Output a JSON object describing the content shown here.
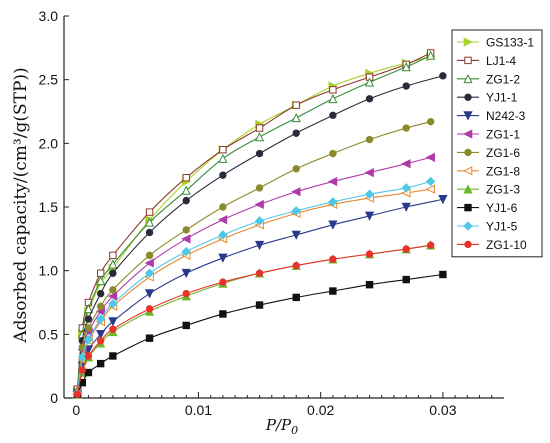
{
  "chart_data": {
    "type": "line",
    "title": "",
    "xlabel": "P/P0",
    "xlabel_main": "P/P",
    "xlabel_sub": "0",
    "ylabel": "Adsorbed capacity/(cm³/g(STP))",
    "xlim": [
      -0.001,
      0.035
    ],
    "ylim": [
      0,
      3.0
    ],
    "xticks": [
      0,
      0.01,
      0.02,
      0.03
    ],
    "xtick_labels": [
      "0",
      "0.01",
      "0.02",
      "0.03"
    ],
    "yticks": [
      0,
      0.5,
      1.0,
      1.5,
      2.0,
      2.5,
      3.0
    ],
    "ytick_labels": [
      "0",
      "0.5",
      "1.0",
      "1.5",
      "2.0",
      "2.5",
      "3.0"
    ],
    "grid": false,
    "legend_position": "top-right",
    "series": [
      {
        "name": "GS133-1",
        "color": "#a8d22a",
        "marker": "triangle-right",
        "points": [
          [
            0.0001,
            0.06
          ],
          [
            0.0005,
            0.5
          ],
          [
            0.001,
            0.68
          ],
          [
            0.002,
            0.9
          ],
          [
            0.003,
            1.02
          ],
          [
            0.006,
            1.4
          ],
          [
            0.009,
            1.7
          ],
          [
            0.012,
            1.95
          ],
          [
            0.015,
            2.15
          ],
          [
            0.018,
            2.3
          ],
          [
            0.021,
            2.45
          ],
          [
            0.024,
            2.55
          ],
          [
            0.027,
            2.63
          ],
          [
            0.029,
            2.68
          ]
        ]
      },
      {
        "name": "LJ1-4",
        "color": "#8b3a2a",
        "marker": "square-open",
        "points": [
          [
            0.0001,
            0.07
          ],
          [
            0.0005,
            0.55
          ],
          [
            0.001,
            0.75
          ],
          [
            0.002,
            0.98
          ],
          [
            0.003,
            1.12
          ],
          [
            0.006,
            1.46
          ],
          [
            0.009,
            1.73
          ],
          [
            0.012,
            1.95
          ],
          [
            0.015,
            2.12
          ],
          [
            0.018,
            2.3
          ],
          [
            0.021,
            2.42
          ],
          [
            0.024,
            2.52
          ],
          [
            0.027,
            2.62
          ],
          [
            0.029,
            2.71
          ]
        ]
      },
      {
        "name": "ZG1-2",
        "color": "#3a8a3a",
        "marker": "triangle-up-open",
        "points": [
          [
            0.0001,
            0.06
          ],
          [
            0.0005,
            0.5
          ],
          [
            0.001,
            0.7
          ],
          [
            0.002,
            0.92
          ],
          [
            0.003,
            1.05
          ],
          [
            0.006,
            1.38
          ],
          [
            0.009,
            1.63
          ],
          [
            0.012,
            1.88
          ],
          [
            0.015,
            2.05
          ],
          [
            0.018,
            2.2
          ],
          [
            0.021,
            2.35
          ],
          [
            0.024,
            2.48
          ],
          [
            0.027,
            2.6
          ],
          [
            0.029,
            2.69
          ]
        ]
      },
      {
        "name": "YJ1-1",
        "color": "#2a2a3a",
        "marker": "circle",
        "points": [
          [
            0.0001,
            0.05
          ],
          [
            0.0005,
            0.45
          ],
          [
            0.001,
            0.62
          ],
          [
            0.002,
            0.82
          ],
          [
            0.003,
            0.98
          ],
          [
            0.006,
            1.3
          ],
          [
            0.009,
            1.55
          ],
          [
            0.012,
            1.75
          ],
          [
            0.015,
            1.92
          ],
          [
            0.018,
            2.08
          ],
          [
            0.021,
            2.22
          ],
          [
            0.024,
            2.35
          ],
          [
            0.027,
            2.45
          ],
          [
            0.03,
            2.53
          ]
        ]
      },
      {
        "name": "N242-3",
        "color": "#2a3a8a",
        "marker": "triangle-down",
        "points": [
          [
            0.0001,
            0.04
          ],
          [
            0.0005,
            0.25
          ],
          [
            0.001,
            0.38
          ],
          [
            0.002,
            0.5
          ],
          [
            0.003,
            0.6
          ],
          [
            0.006,
            0.82
          ],
          [
            0.009,
            0.98
          ],
          [
            0.012,
            1.1
          ],
          [
            0.015,
            1.2
          ],
          [
            0.018,
            1.28
          ],
          [
            0.021,
            1.36
          ],
          [
            0.024,
            1.43
          ],
          [
            0.027,
            1.5
          ],
          [
            0.03,
            1.56
          ]
        ]
      },
      {
        "name": "ZG1-1",
        "color": "#b03aa8",
        "marker": "triangle-left",
        "points": [
          [
            0.0001,
            0.05
          ],
          [
            0.0005,
            0.38
          ],
          [
            0.001,
            0.52
          ],
          [
            0.002,
            0.68
          ],
          [
            0.003,
            0.8
          ],
          [
            0.006,
            1.06
          ],
          [
            0.009,
            1.25
          ],
          [
            0.012,
            1.4
          ],
          [
            0.015,
            1.52
          ],
          [
            0.018,
            1.62
          ],
          [
            0.021,
            1.7
          ],
          [
            0.024,
            1.77
          ],
          [
            0.027,
            1.84
          ],
          [
            0.029,
            1.89
          ]
        ]
      },
      {
        "name": "ZG1-6",
        "color": "#8a8a2a",
        "marker": "circle",
        "points": [
          [
            0.0001,
            0.05
          ],
          [
            0.0005,
            0.4
          ],
          [
            0.001,
            0.55
          ],
          [
            0.002,
            0.72
          ],
          [
            0.003,
            0.85
          ],
          [
            0.006,
            1.12
          ],
          [
            0.009,
            1.32
          ],
          [
            0.012,
            1.5
          ],
          [
            0.015,
            1.65
          ],
          [
            0.018,
            1.8
          ],
          [
            0.021,
            1.92
          ],
          [
            0.024,
            2.03
          ],
          [
            0.027,
            2.12
          ],
          [
            0.029,
            2.17
          ]
        ]
      },
      {
        "name": "ZG1-8",
        "color": "#e8862a",
        "marker": "triangle-left-open",
        "points": [
          [
            0.0001,
            0.04
          ],
          [
            0.0005,
            0.3
          ],
          [
            0.001,
            0.45
          ],
          [
            0.002,
            0.6
          ],
          [
            0.003,
            0.72
          ],
          [
            0.006,
            0.95
          ],
          [
            0.009,
            1.12
          ],
          [
            0.012,
            1.25
          ],
          [
            0.015,
            1.36
          ],
          [
            0.018,
            1.45
          ],
          [
            0.021,
            1.52
          ],
          [
            0.024,
            1.57
          ],
          [
            0.027,
            1.61
          ],
          [
            0.029,
            1.64
          ]
        ]
      },
      {
        "name": "ZG1-3",
        "color": "#6ab82a",
        "marker": "triangle-up",
        "points": [
          [
            0.0001,
            0.03
          ],
          [
            0.0005,
            0.2
          ],
          [
            0.001,
            0.32
          ],
          [
            0.002,
            0.43
          ],
          [
            0.003,
            0.52
          ],
          [
            0.006,
            0.68
          ],
          [
            0.009,
            0.8
          ],
          [
            0.012,
            0.9
          ],
          [
            0.015,
            0.98
          ],
          [
            0.018,
            1.04
          ],
          [
            0.021,
            1.09
          ],
          [
            0.024,
            1.13
          ],
          [
            0.027,
            1.17
          ],
          [
            0.029,
            1.2
          ]
        ]
      },
      {
        "name": "YJ1-6",
        "color": "#111111",
        "marker": "square",
        "points": [
          [
            0.0001,
            0.03
          ],
          [
            0.0005,
            0.12
          ],
          [
            0.001,
            0.2
          ],
          [
            0.002,
            0.27
          ],
          [
            0.003,
            0.33
          ],
          [
            0.006,
            0.47
          ],
          [
            0.009,
            0.57
          ],
          [
            0.012,
            0.66
          ],
          [
            0.015,
            0.73
          ],
          [
            0.018,
            0.79
          ],
          [
            0.021,
            0.84
          ],
          [
            0.024,
            0.89
          ],
          [
            0.027,
            0.93
          ],
          [
            0.03,
            0.97
          ]
        ]
      },
      {
        "name": "YJ1-5",
        "color": "#4ec8e8",
        "marker": "diamond",
        "points": [
          [
            0.0001,
            0.04
          ],
          [
            0.0005,
            0.32
          ],
          [
            0.001,
            0.46
          ],
          [
            0.002,
            0.62
          ],
          [
            0.003,
            0.74
          ],
          [
            0.006,
            0.98
          ],
          [
            0.009,
            1.15
          ],
          [
            0.012,
            1.28
          ],
          [
            0.015,
            1.39
          ],
          [
            0.018,
            1.47
          ],
          [
            0.021,
            1.54
          ],
          [
            0.024,
            1.6
          ],
          [
            0.027,
            1.65
          ],
          [
            0.029,
            1.7
          ]
        ]
      },
      {
        "name": "ZG1-10",
        "color": "#e8322a",
        "marker": "circle",
        "points": [
          [
            0.0001,
            0.03
          ],
          [
            0.0005,
            0.22
          ],
          [
            0.001,
            0.33
          ],
          [
            0.002,
            0.45
          ],
          [
            0.003,
            0.54
          ],
          [
            0.006,
            0.7
          ],
          [
            0.009,
            0.82
          ],
          [
            0.012,
            0.91
          ],
          [
            0.015,
            0.98
          ],
          [
            0.018,
            1.04
          ],
          [
            0.021,
            1.09
          ],
          [
            0.024,
            1.13
          ],
          [
            0.027,
            1.17
          ],
          [
            0.029,
            1.2
          ]
        ]
      }
    ]
  }
}
